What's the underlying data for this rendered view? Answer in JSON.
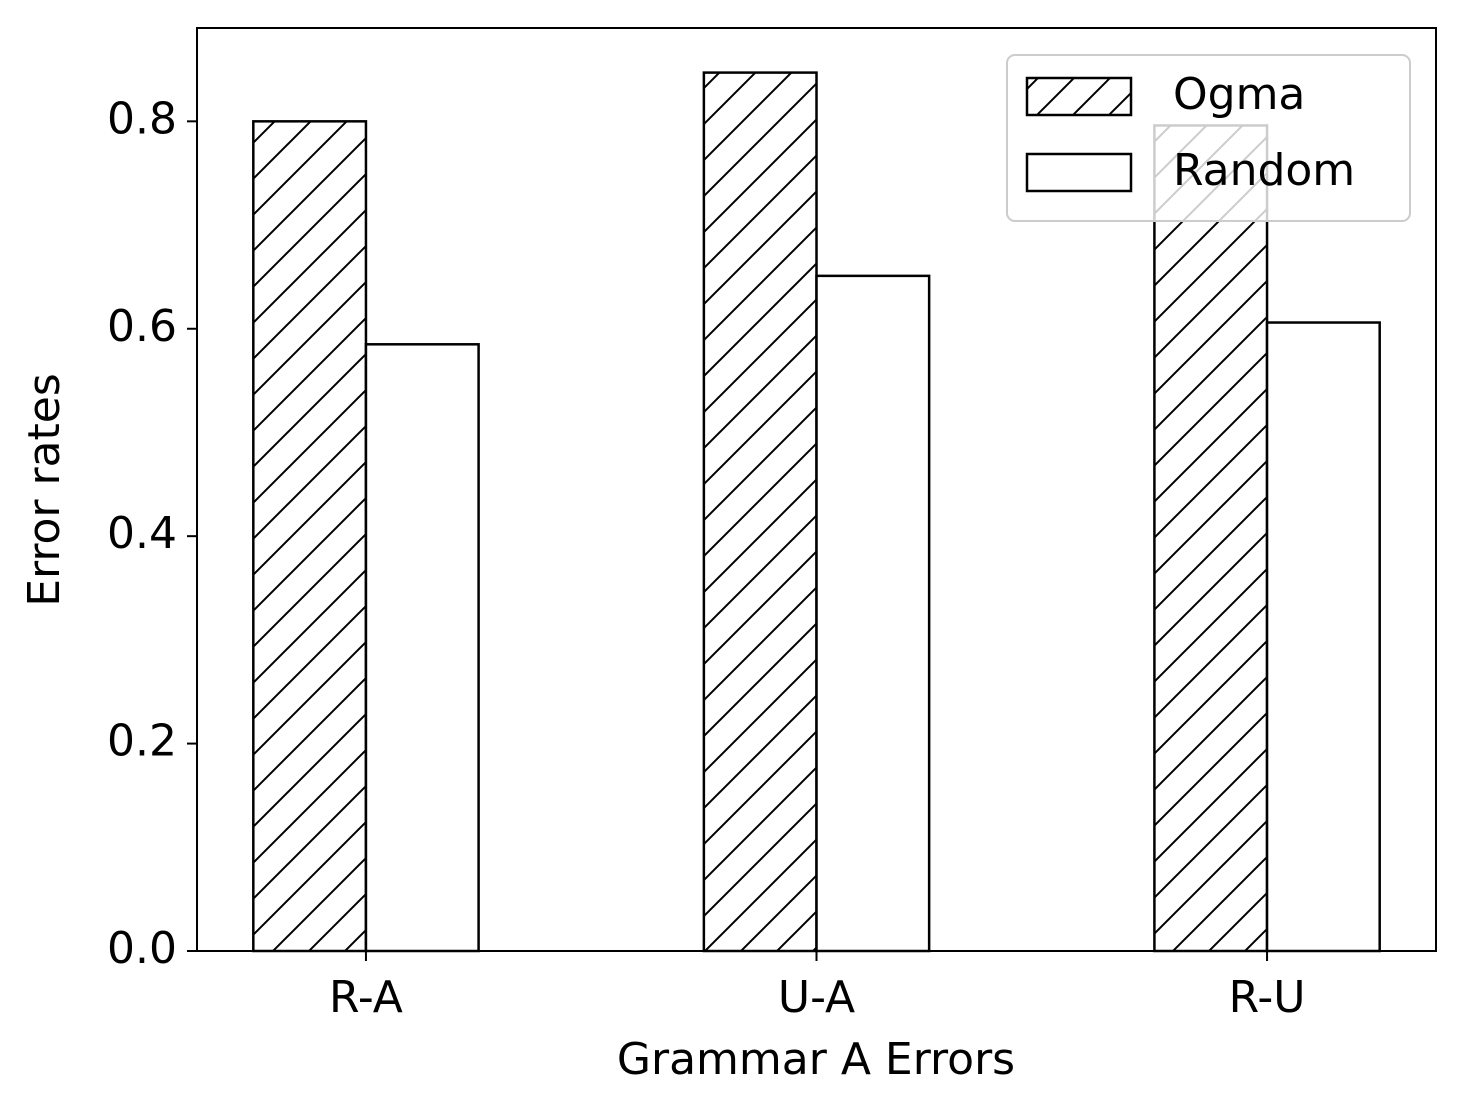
{
  "chart_data": {
    "type": "bar",
    "x_label": "Grammar A Errors",
    "y_label": "Error rates",
    "categories": [
      "R-A",
      "U-A",
      "R-U"
    ],
    "series": [
      {
        "name": "Ogma",
        "color": "#ffffff",
        "hatch": "//",
        "values": [
          0.8,
          0.847,
          0.796
        ]
      },
      {
        "name": "Random",
        "color": "#ffffff",
        "hatch": "",
        "values": [
          0.585,
          0.651,
          0.606
        ]
      }
    ],
    "ylim": [
      0,
      0.89
    ],
    "yticks": [
      {
        "value": 0,
        "label": "0.0"
      },
      0.2,
      0.4,
      0.6,
      0.8
    ],
    "grid": false,
    "legend": "upper right"
  }
}
